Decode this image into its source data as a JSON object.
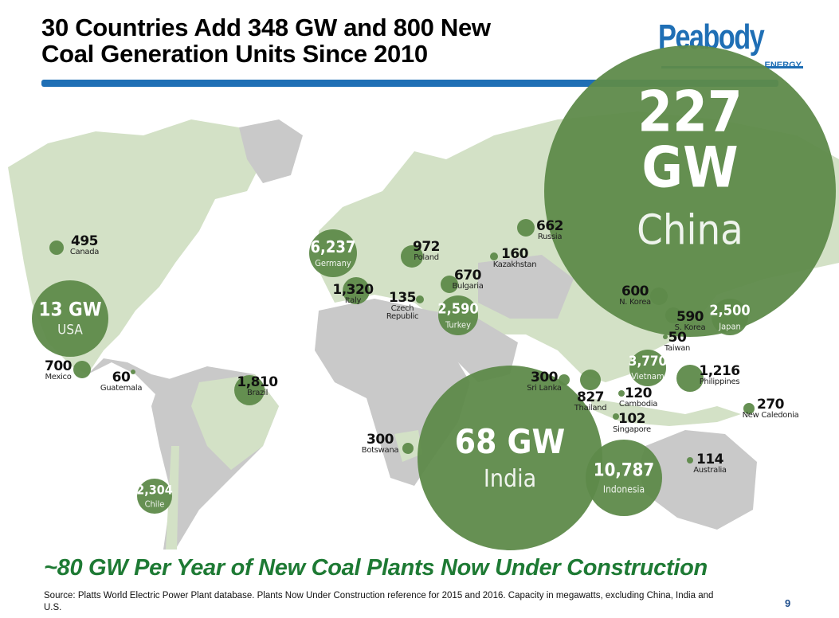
{
  "header": {
    "title_line1": "30 Countries Add 348 GW and 800 New",
    "title_line2": "Coal Generation Units Since 2010",
    "logo_text": "Peabody",
    "logo_subtext": "ENERGY"
  },
  "colors": {
    "brand_blue": "#1f6fb5",
    "bubble_green": "#5e8a4a",
    "highlight_land": "#d3e1c6",
    "land_grey": "#c9c9c9",
    "tagline_green": "#1e7a34"
  },
  "map": {
    "large": [
      {
        "value": "227 GW",
        "country": "China"
      },
      {
        "value": "68 GW",
        "country": "India"
      },
      {
        "value": "13 GW",
        "country": "USA"
      }
    ],
    "inside": [
      {
        "value": "10,787",
        "country": "Indonesia"
      },
      {
        "value": "6,237",
        "country": "Germany"
      },
      {
        "value": "2,590",
        "country": "Turkey"
      },
      {
        "value": "2,500",
        "country": "Japan"
      },
      {
        "value": "3,770",
        "country": "Vietnam"
      },
      {
        "value": "2,304",
        "country": "Chile"
      }
    ],
    "outside": [
      {
        "value": "1,810",
        "country": "Brazil"
      },
      {
        "value": "1,320",
        "country": "Italy"
      },
      {
        "value": "1,216",
        "country": "Philippines"
      },
      {
        "value": "972",
        "country": "Poland"
      },
      {
        "value": "827",
        "country": "Thailand"
      },
      {
        "value": "700",
        "country": "Mexico"
      },
      {
        "value": "670",
        "country": "Bulgaria"
      },
      {
        "value": "662",
        "country": "Russia"
      },
      {
        "value": "600",
        "country": "N. Korea"
      },
      {
        "value": "590",
        "country": "S. Korea"
      },
      {
        "value": "495",
        "country": "Canada"
      },
      {
        "value": "300",
        "country": "Sri Lanka"
      },
      {
        "value": "300",
        "country": "Botswana"
      },
      {
        "value": "270",
        "country": "New Caledonia"
      },
      {
        "value": "160",
        "country": "Kazakhstan"
      },
      {
        "value": "135",
        "country": "Czech Republic"
      },
      {
        "value": "120",
        "country": "Cambodia"
      },
      {
        "value": "114",
        "country": "Australia"
      },
      {
        "value": "102",
        "country": "Singapore"
      },
      {
        "value": "60",
        "country": "Guatemala"
      },
      {
        "value": "50",
        "country": "Taiwan"
      }
    ]
  },
  "tagline": "~80 GW Per Year of New Coal Plants Now Under Construction",
  "source": "Source: Platts World Electric Power Plant database.  Plants Now Under Construction reference for 2015 and 2016.  Capacity in megawatts, excluding China, India and U.S.",
  "page_number": "9"
}
